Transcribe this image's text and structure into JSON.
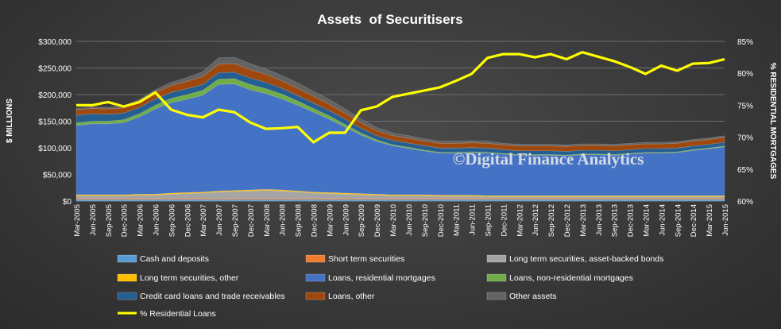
{
  "chart_data": {
    "type": "area",
    "title": "Assets  of Securitisers",
    "ylabel": "$ MILLIONS",
    "y2label": "% RESIDENTIAL MORTGAGES",
    "watermark": "©Digital Finance Analytics",
    "ylim": [
      0,
      300000
    ],
    "y_ticks": [
      "$0",
      "$50,000",
      "$100,000",
      "$150,000",
      "$200,000",
      "$250,000",
      "$300,000"
    ],
    "y2lim": [
      60,
      85
    ],
    "y2_ticks": [
      "60%",
      "65%",
      "70%",
      "75%",
      "80%",
      "85%"
    ],
    "grid": true,
    "legend_position": "bottom",
    "categories": [
      "Mar-2005",
      "Jun-2005",
      "Sep-2005",
      "Dec-2005",
      "Mar-2006",
      "Jun-2006",
      "Sep-2006",
      "Dec-2006",
      "Mar-2007",
      "Jun-2007",
      "Sep-2007",
      "Dec-2007",
      "Mar-2008",
      "Jun-2008",
      "Sep-2008",
      "Dec-2008",
      "Mar-2009",
      "Jun-2009",
      "Sep-2009",
      "Dec-2009",
      "Mar-2010",
      "Jun-2010",
      "Sep-2010",
      "Dec-2010",
      "Mar-2011",
      "Jun-2011",
      "Sep-2011",
      "Dec-2011",
      "Mar-2012",
      "Jun-2012",
      "Sep-2012",
      "Dec-2012",
      "Mar-2013",
      "Jun-2013",
      "Sep-2013",
      "Dec-2013",
      "Mar-2014",
      "Jun-2014",
      "Sep-2014",
      "Dec-2014",
      "Mar-2015",
      "Jun-2015"
    ],
    "series": [
      {
        "name": "Cash and deposits",
        "color": "#5b9bd5",
        "values": [
          3000,
          3000,
          3000,
          3000,
          3000,
          3000,
          3000,
          3000,
          3000,
          3000,
          3000,
          3000,
          3000,
          3000,
          3000,
          3000,
          3000,
          3000,
          3000,
          3000,
          3000,
          3000,
          3000,
          3000,
          3000,
          3000,
          3000,
          3000,
          3000,
          3000,
          3000,
          3000,
          3000,
          3000,
          3000,
          3000,
          3000,
          3000,
          3000,
          3000,
          3000,
          3000
        ]
      },
      {
        "name": "Short term securities",
        "color": "#ed7d31",
        "values": [
          2000,
          2000,
          2000,
          2000,
          2000,
          2000,
          2000,
          2000,
          2000,
          2000,
          2000,
          2000,
          2000,
          2000,
          2000,
          2000,
          2000,
          2000,
          2000,
          2000,
          2000,
          2000,
          2000,
          2000,
          2000,
          2000,
          2000,
          2000,
          2000,
          2000,
          2000,
          2000,
          2000,
          2000,
          2000,
          2000,
          2000,
          2000,
          2000,
          2000,
          2000,
          2000
        ]
      },
      {
        "name": "Long term securities, asset-backed bonds",
        "color": "#a5a5a5",
        "values": [
          5000,
          5000,
          5000,
          5000,
          6000,
          6000,
          8000,
          9000,
          10000,
          12000,
          13000,
          14000,
          15000,
          14000,
          12000,
          10000,
          9000,
          8000,
          7000,
          6000,
          5000,
          5000,
          5000,
          4000,
          4000,
          4000,
          3000,
          3000,
          3000,
          3000,
          3000,
          3000,
          3000,
          3000,
          3000,
          3000,
          3000,
          3000,
          3000,
          3000,
          3000,
          3000
        ]
      },
      {
        "name": "Long term securities, other",
        "color": "#ffc000",
        "values": [
          2000,
          2000,
          2000,
          2000,
          2000,
          2000,
          2000,
          2000,
          2000,
          2000,
          2000,
          2000,
          2000,
          2000,
          2000,
          2000,
          2000,
          2000,
          2000,
          2000,
          2000,
          2000,
          2000,
          2000,
          2000,
          2000,
          2000,
          2000,
          2000,
          2000,
          2000,
          2000,
          2000,
          2000,
          2000,
          2000,
          2000,
          2000,
          2000,
          2000,
          2000,
          2000
        ]
      },
      {
        "name": "Loans, residential mortgages",
        "color": "#4472c4",
        "values": [
          130000,
          133000,
          133000,
          135000,
          145000,
          160000,
          170000,
          175000,
          182000,
          200000,
          200000,
          188000,
          180000,
          171000,
          161000,
          150000,
          138000,
          124000,
          110000,
          99000,
          92000,
          87000,
          82000,
          79000,
          79000,
          80000,
          80000,
          78000,
          76000,
          76000,
          76000,
          75000,
          77000,
          77000,
          76000,
          78000,
          80000,
          80000,
          81000,
          85000,
          88000,
          92000
        ]
      },
      {
        "name": "Loans, non-residential mortgages",
        "color": "#70ad47",
        "values": [
          5000,
          5000,
          5000,
          6000,
          6000,
          7000,
          8000,
          9000,
          9000,
          10000,
          10000,
          10000,
          9000,
          9000,
          8000,
          7000,
          6000,
          5000,
          4000,
          3000,
          2000,
          2000,
          2000,
          1500,
          1500,
          1500,
          1500,
          1500,
          1500,
          1500,
          1500,
          1500,
          1500,
          1500,
          1500,
          1500,
          1500,
          1500,
          1500,
          1500,
          1500,
          1500
        ]
      },
      {
        "name": "Credit card loans and trade receivables",
        "color": "#255e91",
        "values": [
          14000,
          14000,
          13000,
          12000,
          12000,
          12000,
          11000,
          11000,
          11000,
          12000,
          12000,
          12000,
          12000,
          11000,
          10000,
          10000,
          10000,
          10000,
          9000,
          8000,
          8000,
          8000,
          8000,
          8000,
          8000,
          8000,
          8000,
          7000,
          7000,
          7000,
          7000,
          7000,
          7000,
          7000,
          7000,
          7000,
          7000,
          7000,
          7000,
          7000,
          7000,
          7000
        ]
      },
      {
        "name": "Loans, other",
        "color": "#9e480e",
        "values": [
          10000,
          10000,
          10000,
          10000,
          11000,
          12000,
          13000,
          14000,
          15000,
          16000,
          16000,
          16000,
          15000,
          14000,
          14000,
          13000,
          12000,
          11000,
          10000,
          9000,
          9000,
          9000,
          9000,
          9000,
          9000,
          9000,
          9000,
          9000,
          9000,
          9000,
          9000,
          9000,
          9000,
          9000,
          9000,
          9000,
          9000,
          9000,
          9000,
          9000,
          9000,
          9000
        ]
      },
      {
        "name": "Other assets",
        "color": "#636363",
        "values": [
          3000,
          3000,
          3000,
          3000,
          4000,
          5000,
          6000,
          7000,
          9000,
          12000,
          12000,
          11000,
          10000,
          10000,
          10000,
          9000,
          9000,
          8000,
          7000,
          6000,
          5000,
          5000,
          4000,
          4000,
          4000,
          4000,
          4000,
          3000,
          3000,
          3000,
          3000,
          3000,
          3000,
          3000,
          3000,
          3000,
          3000,
          3000,
          3000,
          3000,
          3000,
          3000
        ]
      }
    ],
    "line_series": {
      "name": "% Residential Loans",
      "color": "#ffff00",
      "axis": "y2",
      "values": [
        75,
        75,
        75.5,
        74.8,
        75.5,
        77,
        74.3,
        73.5,
        73.1,
        74.3,
        73.9,
        72.3,
        71.3,
        71.4,
        71.6,
        69.2,
        70.7,
        70.7,
        74.2,
        74.8,
        76.3,
        76.8,
        77.3,
        77.8,
        78.8,
        79.9,
        82.4,
        83,
        83,
        82.5,
        83,
        82.2,
        83.3,
        82.6,
        81.9,
        81,
        79.9,
        81.2,
        80.4,
        81.5,
        81.6,
        82.2
      ]
    }
  }
}
